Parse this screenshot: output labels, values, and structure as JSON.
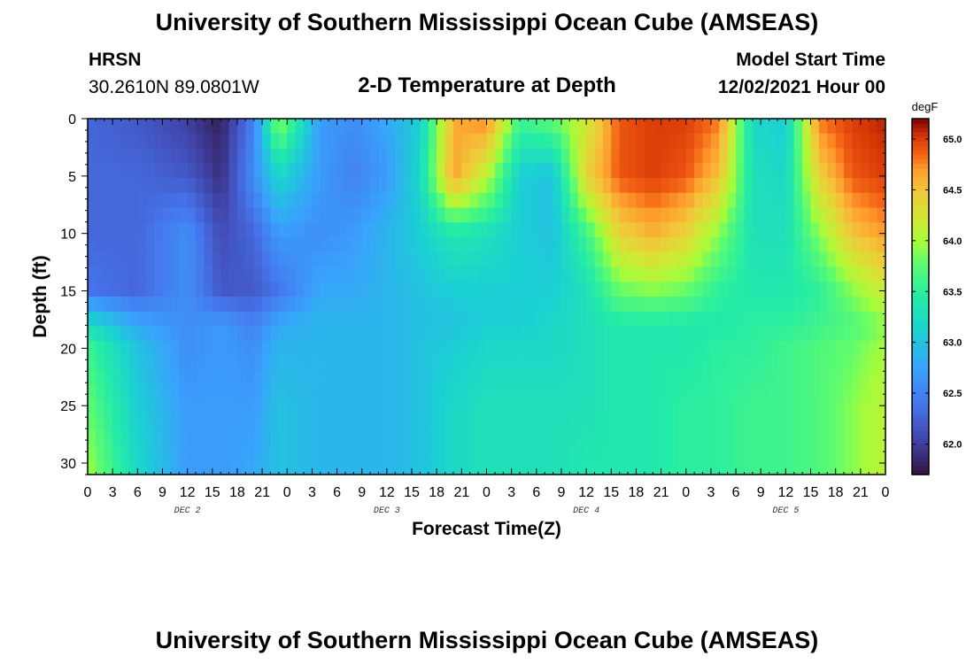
{
  "header": {
    "title": "University of Southern Mississippi Ocean Cube (AMSEAS)",
    "station": "HRSN",
    "coords": "30.2610N  89.0801W",
    "model_start_label": "Model Start Time",
    "model_start_value": "12/02/2021 Hour 00"
  },
  "footer_title": "University of Southern Mississippi Ocean Cube (AMSEAS)",
  "chart_data": {
    "type": "heatmap",
    "title": "2-D Temperature at Depth",
    "xlabel": "Forecast Time(Z)",
    "ylabel": "Depth (ft)",
    "colorbar_label": "degF",
    "x_ticks": [
      "0",
      "3",
      "6",
      "9",
      "12",
      "15",
      "18",
      "21",
      "0",
      "3",
      "6",
      "9",
      "12",
      "15",
      "18",
      "21",
      "0",
      "3",
      "6",
      "9",
      "12",
      "15",
      "18",
      "21",
      "0",
      "3",
      "6",
      "9",
      "12",
      "15",
      "18",
      "21",
      "0"
    ],
    "date_labels": [
      {
        "label": "DEC 2",
        "hour": 12
      },
      {
        "label": "DEC 3",
        "hour": 36
      },
      {
        "label": "DEC 4",
        "hour": 60
      },
      {
        "label": "DEC 5",
        "hour": 84
      }
    ],
    "xlim_hours": [
      0,
      96
    ],
    "ylim_ft": [
      0,
      31
    ],
    "y_ticks": [
      0,
      5,
      10,
      15,
      20,
      25,
      30
    ],
    "y_reversed": true,
    "colorbar_range": [
      61.7,
      65.2
    ],
    "colorbar_ticks": [
      "62.0",
      "62.5",
      "63.0",
      "63.5",
      "64.0",
      "64.5",
      "65.0"
    ],
    "colormap": "turbo",
    "x_hours": [
      0,
      6,
      12,
      16,
      20,
      23,
      28,
      32,
      36,
      40,
      44,
      48,
      52,
      56,
      60,
      64,
      68,
      72,
      76,
      80,
      84,
      88,
      92,
      96
    ],
    "depth_ft": [
      0,
      5,
      10,
      15,
      18,
      20,
      25,
      31
    ],
    "temperature": [
      [
        62.3,
        62.2,
        62.0,
        61.8,
        62.5,
        64.0,
        62.7,
        62.6,
        62.8,
        63.1,
        64.6,
        64.8,
        63.6,
        63.8,
        64.2,
        64.9,
        65.0,
        65.0,
        64.8,
        63.2,
        63.1,
        64.8,
        65.0,
        65.1
      ],
      [
        62.3,
        62.3,
        62.2,
        61.9,
        62.6,
        63.2,
        62.7,
        62.5,
        62.7,
        63.2,
        64.7,
        64.1,
        63.1,
        63.0,
        64.4,
        64.9,
        65.0,
        64.9,
        64.5,
        63.3,
        63.2,
        64.4,
        64.9,
        65.0
      ],
      [
        62.3,
        62.3,
        62.6,
        62.1,
        62.3,
        62.7,
        62.6,
        62.7,
        62.9,
        63.1,
        63.4,
        63.3,
        63.1,
        63.0,
        63.6,
        64.4,
        64.6,
        64.4,
        63.9,
        63.3,
        63.3,
        63.9,
        64.5,
        64.7
      ],
      [
        62.4,
        62.3,
        62.6,
        62.2,
        62.2,
        62.4,
        62.8,
        62.8,
        62.9,
        63.0,
        63.1,
        63.1,
        63.1,
        63.1,
        63.3,
        63.8,
        63.9,
        63.8,
        63.5,
        63.4,
        63.4,
        63.5,
        63.9,
        64.2
      ],
      [
        63.3,
        62.8,
        62.6,
        62.7,
        62.5,
        62.8,
        62.9,
        62.9,
        62.9,
        63.0,
        63.0,
        63.1,
        63.1,
        63.2,
        63.3,
        63.4,
        63.4,
        63.4,
        63.4,
        63.5,
        63.5,
        63.6,
        63.7,
        63.9
      ],
      [
        63.6,
        63.0,
        62.6,
        62.7,
        62.6,
        62.9,
        62.9,
        62.9,
        62.9,
        63.0,
        63.1,
        63.2,
        63.2,
        63.2,
        63.3,
        63.4,
        63.4,
        63.4,
        63.5,
        63.5,
        63.6,
        63.7,
        63.8,
        64.0
      ],
      [
        63.8,
        63.1,
        62.7,
        62.7,
        62.7,
        63.0,
        62.9,
        62.9,
        62.9,
        63.0,
        63.2,
        63.3,
        63.3,
        63.3,
        63.3,
        63.4,
        63.4,
        63.5,
        63.5,
        63.6,
        63.6,
        63.7,
        63.9,
        64.1
      ],
      [
        64.0,
        63.2,
        62.7,
        62.7,
        62.8,
        63.0,
        62.9,
        62.9,
        62.9,
        63.0,
        63.2,
        63.3,
        63.3,
        63.3,
        63.4,
        63.4,
        63.4,
        63.5,
        63.5,
        63.6,
        63.6,
        63.7,
        63.9,
        64.1
      ]
    ]
  }
}
